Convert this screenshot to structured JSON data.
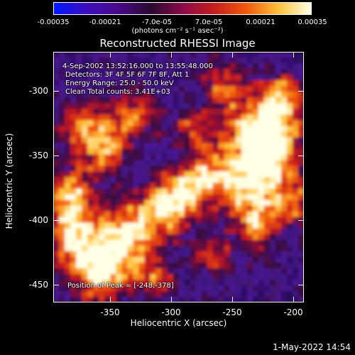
{
  "colorbar": {
    "ticks": [
      "-0.00035",
      "-0.00021",
      "-7.0e-05",
      "7.0e-05",
      "0.00021",
      "0.00035"
    ],
    "units": "(photons cm⁻² s⁻¹ asec⁻²)",
    "stops": [
      "#0018ff",
      "#3c0fbf",
      "#4a0a8a",
      "#2a0a30",
      "#8a0a4a",
      "#c81e1e",
      "#f05a0a",
      "#ffc23c",
      "#ffffe6"
    ]
  },
  "title": "Reconstructed RHESSI Image",
  "info": {
    "time": "4-Sep-2002 13:52:16.000 to 13:55:48.000",
    "detectors": "Detectors: 3F 4F 5F 6F 7F 8F, Att 1",
    "energy": "Energy Range: 25.0 - 50.0 keV",
    "method": "Clean    Total counts: 3.41E+03",
    "peak": "Position of Peak = [-248,-378]"
  },
  "axes": {
    "xlabel": "Heliocentric X (arcsec)",
    "ylabel": "Heliocentric Y (arcsec)",
    "xticks": [
      "-350",
      "-300",
      "-250",
      "-200"
    ],
    "yticks": [
      "-300",
      "-350",
      "-400",
      "-450"
    ]
  },
  "timestamp": "1-May-2022 14:54"
}
